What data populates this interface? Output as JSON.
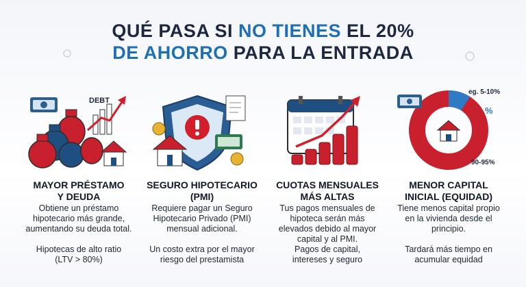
{
  "title": {
    "line1": {
      "before": "QUÉ PASA SI",
      "highlight": "NO TIENES",
      "after": "EL 20%"
    },
    "line2": {
      "highlight": "DE AHORRO",
      "after": "PARA LA ENTRADA"
    }
  },
  "columns": [
    {
      "icon_labels": [
        "DEBT"
      ],
      "heading": [
        "MAYOR PRÉSTAMO",
        "Y DEUDA"
      ],
      "description": [
        "Obtiene un préstamo",
        "hipotecario más grande,",
        "aumentando su deuda total."
      ],
      "note": [
        "Hipotecas de alto ratio",
        "(LTV > 80%)"
      ]
    },
    {
      "icon_labels": [],
      "heading": [
        "SEGURO HIPOTECARIO",
        "(PMI)"
      ],
      "description": [
        "Requiere pagar un Seguro",
        "Hipotecario Privado (PMI)",
        "mensual adicional."
      ],
      "note": [
        "Un costo extra por el mayor",
        "riesgo del prestamista"
      ]
    },
    {
      "icon_labels": [],
      "heading": [
        "CUOTAS MENSUALES",
        "MÁS ALTAS"
      ],
      "description": [
        "Tus pagos mensuales de",
        "hipoteca serán más",
        "elevados debido al mayor",
        "capital y al PMI."
      ],
      "note": [
        "Pagos de capital,",
        "intereses y seguro"
      ]
    },
    {
      "icon_labels": [
        "eg. 5-10%",
        "%",
        "90-95%"
      ],
      "heading": [
        "MENOR CAPITAL",
        "INICIAL (EQUIDAD)"
      ],
      "description": [
        "Tiene menos capital propio",
        "en la vivienda desde el",
        "principio."
      ],
      "note": [
        "Tardará más tiempo en",
        "acumular equidad"
      ]
    }
  ]
}
